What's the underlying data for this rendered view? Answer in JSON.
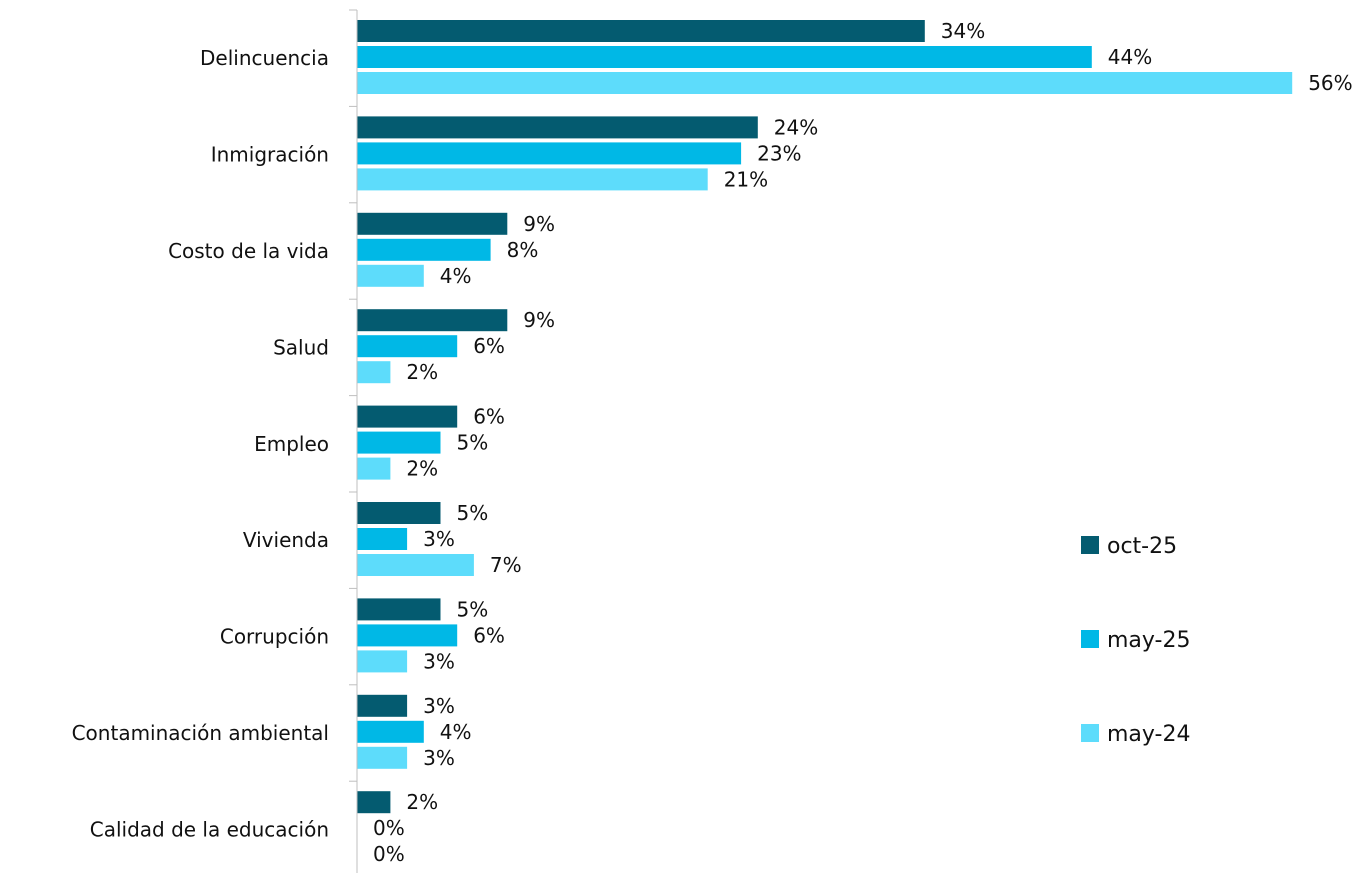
{
  "chart_data": {
    "type": "bar",
    "orientation": "horizontal",
    "categories": [
      "Delincuencia",
      "Inmigración",
      "Costo de la vida",
      "Salud",
      "Empleo",
      "Vivienda",
      "Corrupción",
      "Contaminación ambiental",
      "Calidad de la educación"
    ],
    "series": [
      {
        "name": "oct-25",
        "color": "#045b70",
        "values": [
          34,
          24,
          9,
          9,
          6,
          5,
          5,
          3,
          2
        ],
        "labels": [
          "34%",
          "24%",
          "9%",
          "9%",
          "6%",
          "5%",
          "5%",
          "3%",
          "2%"
        ]
      },
      {
        "name": "may-25",
        "color": "#00b8e6",
        "values": [
          44,
          23,
          8,
          6,
          5,
          3,
          6,
          4,
          0
        ],
        "labels": [
          "44%",
          "23%",
          "8%",
          "6%",
          "5%",
          "3%",
          "6%",
          "4%",
          "0%"
        ]
      },
      {
        "name": "may-24",
        "color": "#5ddcfb",
        "values": [
          56,
          21,
          4,
          2,
          2,
          7,
          3,
          3,
          0
        ],
        "labels": [
          "56%",
          "21%",
          "4%",
          "2%",
          "2%",
          "7%",
          "3%",
          "3%",
          "0%"
        ]
      }
    ],
    "xlim": [
      0,
      56
    ],
    "legend_position": "right",
    "grid": false
  }
}
